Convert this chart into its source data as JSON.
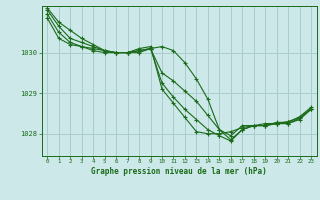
{
  "background_color": "#cce8e8",
  "grid_color": "#aacccc",
  "line_color": "#1a6b1a",
  "xlabel": "Graphe pression niveau de la mer (hPa)",
  "xlim": [
    -0.5,
    23.5
  ],
  "ylim": [
    1027.45,
    1031.15
  ],
  "yticks": [
    1028,
    1029,
    1030
  ],
  "xticks": [
    0,
    1,
    2,
    3,
    4,
    5,
    6,
    7,
    8,
    9,
    10,
    11,
    12,
    13,
    14,
    15,
    16,
    17,
    18,
    19,
    20,
    21,
    22,
    23
  ],
  "series": [
    [
      1030.85,
      1030.35,
      1030.2,
      1030.15,
      1030.05,
      1030.0,
      1030.0,
      1030.0,
      1030.05,
      1030.1,
      1030.15,
      1030.05,
      1029.75,
      1029.35,
      1028.85,
      1028.1,
      1027.95,
      1028.2,
      1028.2,
      1028.25,
      1028.25,
      1028.3,
      1028.4,
      1028.6
    ],
    [
      1030.95,
      1030.5,
      1030.25,
      1030.15,
      1030.1,
      1030.05,
      1030.0,
      1030.0,
      1030.0,
      1030.1,
      1029.5,
      1029.3,
      1029.05,
      1028.8,
      1028.45,
      1028.1,
      1027.85,
      1028.1,
      1028.2,
      1028.2,
      1028.25,
      1028.25,
      1028.35,
      1028.6
    ],
    [
      1031.05,
      1030.65,
      1030.35,
      1030.25,
      1030.15,
      1030.05,
      1030.0,
      1030.0,
      1030.05,
      1030.1,
      1029.25,
      1028.9,
      1028.6,
      1028.35,
      1028.1,
      1027.95,
      1027.82,
      1028.1,
      1028.2,
      1028.2,
      1028.25,
      1028.25,
      1028.38,
      1028.62
    ],
    [
      1031.1,
      1030.75,
      1030.55,
      1030.35,
      1030.2,
      1030.05,
      1030.0,
      1030.0,
      1030.1,
      1030.15,
      1029.1,
      1028.75,
      1028.4,
      1028.05,
      1028.0,
      1028.0,
      1028.05,
      1028.15,
      1028.2,
      1028.2,
      1028.28,
      1028.28,
      1028.42,
      1028.65
    ]
  ]
}
